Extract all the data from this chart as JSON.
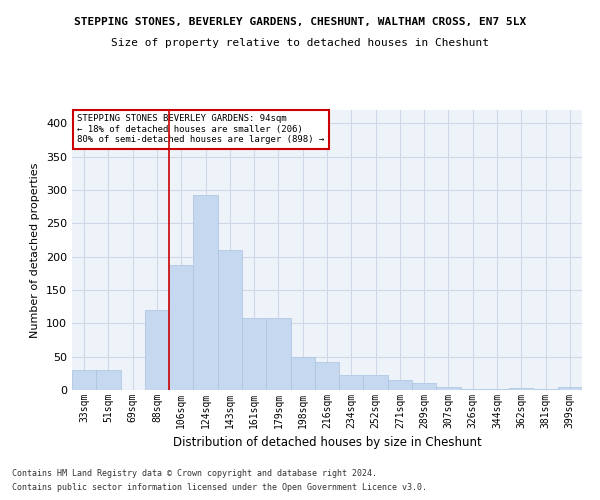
{
  "title1": "STEPPING STONES, BEVERLEY GARDENS, CHESHUNT, WALTHAM CROSS, EN7 5LX",
  "title2": "Size of property relative to detached houses in Cheshunt",
  "xlabel": "Distribution of detached houses by size in Cheshunt",
  "ylabel": "Number of detached properties",
  "footer1": "Contains HM Land Registry data © Crown copyright and database right 2024.",
  "footer2": "Contains public sector information licensed under the Open Government Licence v3.0.",
  "categories": [
    "33sqm",
    "51sqm",
    "69sqm",
    "88sqm",
    "106sqm",
    "124sqm",
    "143sqm",
    "161sqm",
    "179sqm",
    "198sqm",
    "216sqm",
    "234sqm",
    "252sqm",
    "271sqm",
    "289sqm",
    "307sqm",
    "326sqm",
    "344sqm",
    "362sqm",
    "381sqm",
    "399sqm"
  ],
  "values": [
    30,
    30,
    0,
    120,
    188,
    292,
    210,
    108,
    108,
    50,
    42,
    22,
    22,
    15,
    10,
    5,
    2,
    2,
    3,
    2,
    5
  ],
  "bar_color": "#c5d8f0",
  "bar_edge_color": "#a8c4e0",
  "grid_color": "#d0d8e8",
  "bg_color": "#eef2f9",
  "property_line_x": 3.5,
  "annotation_line1": "STEPPING STONES BEVERLEY GARDENS: 94sqm",
  "annotation_line2": "← 18% of detached houses are smaller (206)",
  "annotation_line3": "80% of semi-detached houses are larger (898) →",
  "annotation_box_color": "#cc0000",
  "property_line_color": "#cc0000",
  "ylim": [
    0,
    420
  ],
  "yticks": [
    0,
    50,
    100,
    150,
    200,
    250,
    300,
    350,
    400
  ]
}
